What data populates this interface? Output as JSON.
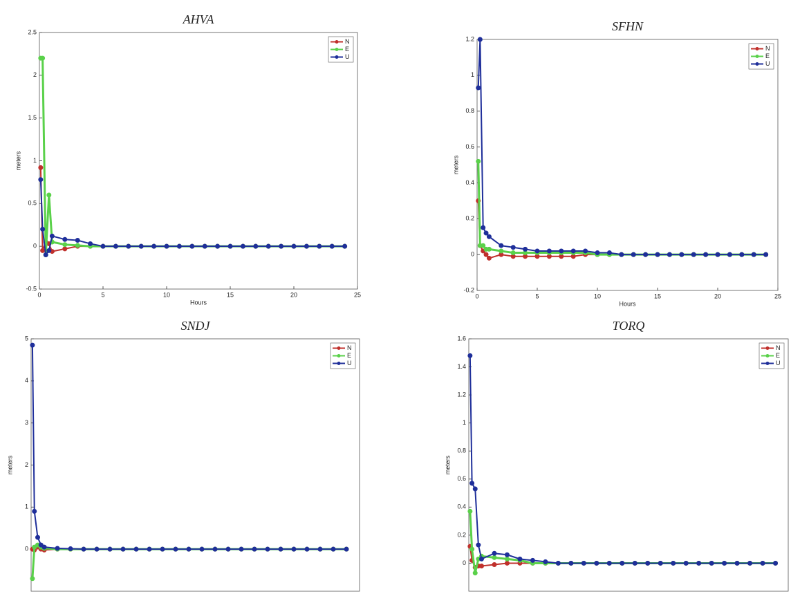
{
  "chart_data": [
    {
      "type": "line",
      "title": "AHVA",
      "xlabel": "Hours",
      "ylabel": "meters",
      "x": [
        0.1,
        0.25,
        0.5,
        0.75,
        1,
        2,
        3,
        4,
        5,
        6,
        7,
        8,
        9,
        10,
        11,
        12,
        13,
        14,
        15,
        16,
        17,
        18,
        19,
        20,
        21,
        22,
        23,
        24
      ],
      "series": [
        {
          "name": "N",
          "color": "#c0302c",
          "values": [
            0.92,
            -0.05,
            0.05,
            0.03,
            -0.06,
            -0.03,
            0,
            0,
            0,
            0,
            0,
            0,
            0,
            0,
            0,
            0,
            0,
            0,
            0,
            0,
            0,
            0,
            0,
            0,
            0,
            0,
            0,
            0
          ]
        },
        {
          "name": "E",
          "color": "#5ad14a",
          "values": [
            2.2,
            2.2,
            -0.1,
            0.6,
            0.05,
            0.02,
            0.01,
            0,
            0,
            0,
            0,
            0,
            0,
            0,
            0,
            0,
            0,
            0,
            0,
            0,
            0,
            0,
            0,
            0,
            0,
            0,
            0,
            0
          ]
        },
        {
          "name": "U",
          "color": "#1f2f9a",
          "values": [
            0.78,
            0.2,
            -0.1,
            -0.05,
            0.12,
            0.08,
            0.07,
            0.03,
            0,
            0,
            0,
            0,
            0,
            0,
            0,
            0,
            0,
            0,
            0,
            0,
            0,
            0,
            0,
            0,
            0,
            0,
            0,
            0
          ]
        }
      ],
      "xlim": [
        0,
        25
      ],
      "xticks": [
        0,
        5,
        10,
        15,
        20,
        25
      ],
      "ylim": [
        -0.5,
        2.5
      ],
      "yticks": [
        -0.5,
        0,
        0.5,
        1,
        1.5,
        2,
        2.5
      ],
      "legend": "upper right"
    },
    {
      "type": "line",
      "title": "SFHN",
      "xlabel": "Hours",
      "ylabel": "meters",
      "x": [
        0.1,
        0.25,
        0.5,
        0.75,
        1,
        2,
        3,
        4,
        5,
        6,
        7,
        8,
        9,
        10,
        11,
        12,
        13,
        14,
        15,
        16,
        17,
        18,
        19,
        20,
        21,
        22,
        23,
        24
      ],
      "series": [
        {
          "name": "N",
          "color": "#c0302c",
          "values": [
            0.3,
            0.05,
            0.02,
            0,
            -0.02,
            0,
            -0.01,
            -0.01,
            -0.01,
            -0.01,
            -0.01,
            -0.01,
            0,
            0,
            0,
            0,
            0,
            0,
            0,
            0,
            0,
            0,
            0,
            0,
            0,
            0,
            0,
            0
          ]
        },
        {
          "name": "E",
          "color": "#5ad14a",
          "values": [
            0.52,
            0.05,
            0.05,
            0.03,
            0.03,
            0.02,
            0.01,
            0.01,
            0.01,
            0.01,
            0.01,
            0.01,
            0.01,
            0,
            0,
            0,
            0,
            0,
            0,
            0,
            0,
            0,
            0,
            0,
            0,
            0,
            0,
            0
          ]
        },
        {
          "name": "U",
          "color": "#1f2f9a",
          "values": [
            0.93,
            1.2,
            0.15,
            0.12,
            0.1,
            0.05,
            0.04,
            0.03,
            0.02,
            0.02,
            0.02,
            0.02,
            0.02,
            0.01,
            0.01,
            0,
            0,
            0,
            0,
            0,
            0,
            0,
            0,
            0,
            0,
            0,
            0,
            0
          ]
        }
      ],
      "xlim": [
        0,
        25
      ],
      "xticks": [
        0,
        5,
        10,
        15,
        20,
        25
      ],
      "ylim": [
        -0.2,
        1.2
      ],
      "yticks": [
        -0.2,
        0,
        0.2,
        0.4,
        0.6,
        0.8,
        1,
        1.2
      ],
      "legend": "upper right"
    },
    {
      "type": "line",
      "title": "SNDJ",
      "ylabel": "meters",
      "x": [
        0.1,
        0.25,
        0.5,
        0.75,
        1,
        2,
        3,
        4,
        5,
        6,
        7,
        8,
        9,
        10,
        11,
        12,
        13,
        14,
        15,
        16,
        17,
        18,
        19,
        20,
        21,
        22,
        23,
        24
      ],
      "series": [
        {
          "name": "N",
          "color": "#c0302c",
          "values": [
            0,
            -0.02,
            0.05,
            0,
            -0.02,
            0,
            0,
            0,
            0,
            0,
            0,
            0,
            0,
            0,
            0,
            0,
            0,
            0,
            0,
            0,
            0,
            0,
            0,
            0,
            0,
            0,
            0,
            0
          ]
        },
        {
          "name": "E",
          "color": "#5ad14a",
          "values": [
            -0.7,
            0.05,
            0.1,
            0.05,
            0.02,
            0,
            0,
            0,
            0,
            0,
            0,
            0,
            0,
            0,
            0,
            0,
            0,
            0,
            0,
            0,
            0,
            0,
            0,
            0,
            0,
            0,
            0,
            0
          ]
        },
        {
          "name": "U",
          "color": "#1f2f9a",
          "values": [
            4.85,
            0.9,
            0.28,
            0.1,
            0.05,
            0.02,
            0.01,
            0,
            0,
            0,
            0,
            0,
            0,
            0,
            0,
            0,
            0,
            0,
            0,
            0,
            0,
            0,
            0,
            0,
            0,
            0,
            0,
            0
          ]
        }
      ],
      "xlim": [
        0,
        25
      ],
      "ylim": [
        -1,
        5
      ],
      "yticks": [
        0,
        1,
        2,
        3,
        4,
        5
      ],
      "legend": "upper right"
    },
    {
      "type": "line",
      "title": "TORQ",
      "ylabel": "meters",
      "x": [
        0.1,
        0.25,
        0.5,
        0.75,
        1,
        2,
        3,
        4,
        5,
        6,
        7,
        8,
        9,
        10,
        11,
        12,
        13,
        14,
        15,
        16,
        17,
        18,
        19,
        20,
        21,
        22,
        23,
        24
      ],
      "series": [
        {
          "name": "N",
          "color": "#c0302c",
          "values": [
            0.12,
            0.02,
            -0.03,
            -0.02,
            -0.02,
            -0.01,
            0,
            0,
            0,
            0,
            0,
            0,
            0,
            0,
            0,
            0,
            0,
            0,
            0,
            0,
            0,
            0,
            0,
            0,
            0,
            0,
            0,
            0
          ]
        },
        {
          "name": "E",
          "color": "#5ad14a",
          "values": [
            0.37,
            0.1,
            -0.07,
            0.03,
            0.05,
            0.04,
            0.03,
            0.02,
            0,
            0,
            0,
            0,
            0,
            0,
            0,
            0,
            0,
            0,
            0,
            0,
            0,
            0,
            0,
            0,
            0,
            0,
            0,
            0
          ]
        },
        {
          "name": "U",
          "color": "#1f2f9a",
          "values": [
            1.48,
            0.57,
            0.53,
            0.13,
            0.03,
            0.07,
            0.06,
            0.03,
            0.02,
            0.01,
            0,
            0,
            0,
            0,
            0,
            0,
            0,
            0,
            0,
            0,
            0,
            0,
            0,
            0,
            0,
            0,
            0,
            0
          ]
        }
      ],
      "xlim": [
        0,
        25
      ],
      "ylim": [
        -0.2,
        1.6
      ],
      "yticks": [
        0,
        0.2,
        0.4,
        0.6,
        0.8,
        1,
        1.2,
        1.4,
        1.6
      ],
      "legend": "upper right"
    }
  ]
}
